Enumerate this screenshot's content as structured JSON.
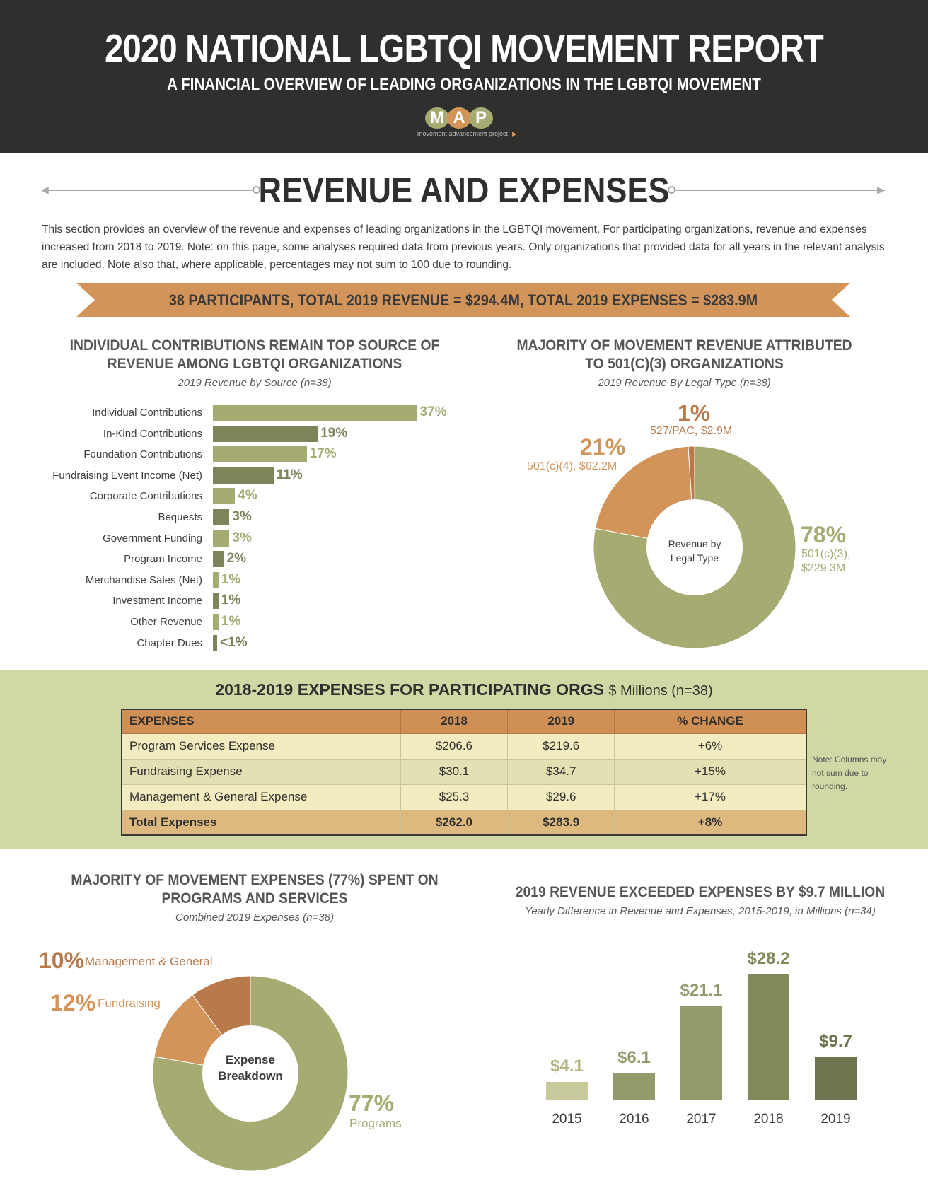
{
  "header": {
    "title": "2020 NATIONAL LGBTQI MOVEMENT REPORT",
    "subtitle": "A FINANCIAL OVERVIEW OF LEADING ORGANIZATIONS IN THE LGBTQI MOVEMENT",
    "logo_letters": [
      "M",
      "A",
      "P"
    ],
    "logo_tagline": "movement advancement project"
  },
  "section": {
    "title": "REVENUE AND EXPENSES",
    "intro": "This section provides an overview of the revenue and expenses of leading organizations in the LGBTQI movement. For participating organizations, revenue and expenses increased from 2018 to 2019. Note: on this page, some analyses required data from previous years. Only organizations that provided data for all years in the relevant analysis are included. Note also that, where applicable, percentages may not sum to 100 due to rounding.",
    "banner": "38 PARTICIPANTS, TOTAL 2019 REVENUE = $294.4M, TOTAL 2019 EXPENSES = $283.9M"
  },
  "colors": {
    "header_bg": "#2f2f2e",
    "olive_light": "#a6ab72",
    "olive_dark": "#7e845a",
    "orange": "#d39459",
    "rust": "#b87a4b",
    "band": "#d0d8a6"
  },
  "chart_data": [
    {
      "type": "bar",
      "orientation": "horizontal",
      "title": "INDIVIDUAL CONTRIBUTIONS REMAIN TOP SOURCE OF REVENUE AMONG LGBTQI ORGANIZATIONS",
      "subtitle": "2019 Revenue by Source (n=38)",
      "categories": [
        "Individual Contributions",
        "In-Kind Contributions",
        "Foundation Contributions",
        "Fundraising Event Income (Net)",
        "Corporate Contributions",
        "Bequests",
        "Government Funding",
        "Program Income",
        "Merchandise Sales (Net)",
        "Investment Income",
        "Other Revenue",
        "Chapter Dues"
      ],
      "values": [
        37,
        19,
        17,
        11,
        4,
        3,
        3,
        2,
        1,
        1,
        1,
        0.5
      ],
      "value_labels": [
        "37%",
        "19%",
        "17%",
        "11%",
        "4%",
        "3%",
        "3%",
        "2%",
        "1%",
        "1%",
        "1%",
        "<1%"
      ]
    },
    {
      "type": "pie",
      "title": "MAJORITY OF MOVEMENT REVENUE ATTRIBUTED TO 501(C)(3) ORGANIZATIONS",
      "subtitle": "2019 Revenue By Legal Type (n=38)",
      "center_label": [
        "Revenue by",
        "Legal Type"
      ],
      "slices": [
        {
          "label": "501(c)(3), $229.3M",
          "label_lines": [
            "501(c)(3),",
            "$229.3M"
          ],
          "value": 78,
          "pct": "78%",
          "color": "#a6ab72"
        },
        {
          "label": "501(c)(4), $62.2M",
          "value": 21,
          "pct": "21%",
          "color": "#d39459"
        },
        {
          "label": "527/PAC, $2.9M",
          "value": 1,
          "pct": "1%",
          "color": "#b87a4b"
        }
      ]
    },
    {
      "type": "table",
      "title": "2018-2019 EXPENSES FOR PARTICIPATING ORGS",
      "unit": "$ Millions (n=38)",
      "columns": [
        "EXPENSES",
        "2018",
        "2019",
        "% CHANGE"
      ],
      "rows": [
        [
          "Program Services Expense",
          "$206.6",
          "$219.6",
          "+6%"
        ],
        [
          "Fundraising Expense",
          "$30.1",
          "$34.7",
          "+15%"
        ],
        [
          "Management & General Expense",
          "$25.3",
          "$29.6",
          "+17%"
        ]
      ],
      "total": [
        "Total Expenses",
        "$262.0",
        "$283.9",
        "+8%"
      ],
      "note": "Note: Columns may not sum due to rounding."
    },
    {
      "type": "pie",
      "title": "MAJORITY OF MOVEMENT EXPENSES (77%) SPENT ON PROGRAMS AND SERVICES",
      "subtitle": "Combined 2019 Expenses (n=38)",
      "center_label": [
        "Expense",
        "Breakdown"
      ],
      "slices": [
        {
          "label": "Programs",
          "value": 77,
          "pct": "77%",
          "color": "#a6ab72"
        },
        {
          "label": "Fundraising",
          "value": 12,
          "pct": "12%",
          "color": "#d39459"
        },
        {
          "label": "Management & General",
          "value": 10,
          "pct": "10%",
          "color": "#b87a4b"
        }
      ]
    },
    {
      "type": "bar",
      "title": "2019 REVENUE EXCEEDED EXPENSES BY $9.7 MILLION",
      "subtitle": "Yearly Difference in Revenue and Expenses, 2015-2019, in Millions (n=34)",
      "categories": [
        "2015",
        "2016",
        "2017",
        "2018",
        "2019"
      ],
      "values": [
        4.1,
        6.1,
        21.1,
        28.2,
        9.7
      ],
      "value_labels": [
        "$4.1",
        "$6.1",
        "$21.1",
        "$28.2",
        "$9.7"
      ],
      "colors": [
        "#c8c99a",
        "#959a6c",
        "#959a6c",
        "#84895c",
        "#6e7350"
      ]
    }
  ]
}
